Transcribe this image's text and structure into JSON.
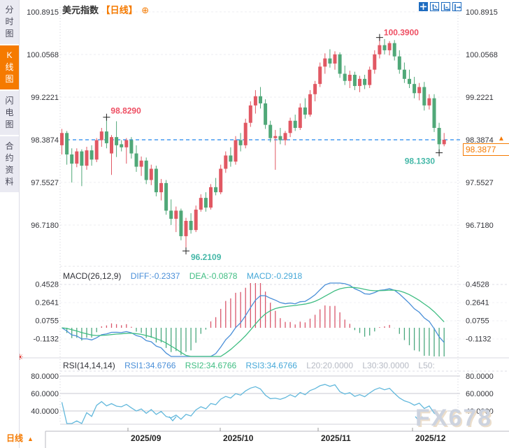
{
  "header": {
    "symbol": "美元指数",
    "period": "【日线】",
    "add_icon": "⊕"
  },
  "sidebar": {
    "items": [
      {
        "label": "分时图",
        "selected": false
      },
      {
        "label": "K线图",
        "selected": true
      },
      {
        "label": "闪电图",
        "selected": false
      },
      {
        "label": "合约资料",
        "selected": false
      }
    ]
  },
  "toolbar": {
    "icons": [
      "crosshair-icon",
      "axis-scale-icon",
      "axis-pan-icon",
      "shift-right-icon"
    ]
  },
  "main_chart": {
    "y_axis_labels": [
      "100.8915",
      "100.0568",
      "99.2221",
      "98.3874",
      "97.5527",
      "96.7180"
    ],
    "current_line_value": "98.3874",
    "current_price": "98.3877",
    "annotations": [
      {
        "text": "98.8290",
        "color": "#ee4f63"
      },
      {
        "text": "100.3900",
        "color": "#ee4f63"
      },
      {
        "text": "96.2109",
        "color": "#45b8a8"
      },
      {
        "text": "98.1330",
        "color": "#45b8a8"
      }
    ]
  },
  "macd_panel": {
    "name": "MACD(26,12,9)",
    "diff": "DIFF:-0.2337",
    "dea": "DEA:-0.0878",
    "macd": "MACD:-0.2918",
    "y_axis_labels": [
      "0.4528",
      "0.2641",
      "0.0755",
      "-0.1132"
    ]
  },
  "rsi_panel": {
    "name": "RSI(14,14,14)",
    "rsi1": "RSI1:34.6766",
    "rsi2": "RSI2:34.6766",
    "rsi3": "RSI3:34.6766",
    "l20": "L20:20.0000",
    "l30": "L30:30.0000",
    "l50": "L50:",
    "y_axis_labels": [
      "80.0000",
      "60.0000",
      "40.0000"
    ]
  },
  "x_axis": {
    "labels": [
      "2025/09",
      "2025/10",
      "2025/11",
      "2025/12"
    ],
    "period_selector": "日线"
  },
  "watermark": "FX678",
  "colors": {
    "up_candle": "#e15863",
    "down_candle": "#50a878",
    "accent": "#f57a00",
    "diff_line": "#4a8fd8",
    "dea_line": "#3fbd82",
    "rsi_line": "#62b8dc",
    "current_line": "#2288ee",
    "ann_red": "#ee4f63",
    "ann_teal": "#45b8a8",
    "hist_pos": "#d9566b",
    "hist_neg": "#4aa87e"
  },
  "chart_data": {
    "type": "candlestick",
    "title": "美元指数 日线",
    "price_ticks": [
      100.8915,
      100.0568,
      99.2221,
      98.3874,
      97.5527,
      96.718
    ],
    "x_ticks": [
      "2025/09",
      "2025/10",
      "2025/11",
      "2025/12"
    ],
    "marks": {
      "early_high": 98.829,
      "peak_high": 100.39,
      "min_low": 96.2109,
      "recent_low": 98.133,
      "last_price": 98.3877,
      "prev_close_line": 98.3874
    },
    "ohlc": [
      [
        98.28,
        98.6,
        98.1,
        98.52
      ],
      [
        98.52,
        98.56,
        97.9,
        98.1
      ],
      [
        98.1,
        98.22,
        97.55,
        97.92
      ],
      [
        97.92,
        98.22,
        97.85,
        98.16
      ],
      [
        98.16,
        98.2,
        97.48,
        97.88
      ],
      [
        97.88,
        98.25,
        97.8,
        98.18
      ],
      [
        98.18,
        98.28,
        97.88,
        98.0
      ],
      [
        98.0,
        98.42,
        97.95,
        98.38
      ],
      [
        98.38,
        98.62,
        98.25,
        98.55
      ],
      [
        98.55,
        98.829,
        98.22,
        98.32
      ],
      [
        98.12,
        98.48,
        97.7,
        98.44
      ],
      [
        98.44,
        98.75,
        98.05,
        98.28
      ],
      [
        98.3,
        98.38,
        98.16,
        98.24
      ],
      [
        98.24,
        98.42,
        97.92,
        98.38
      ],
      [
        98.38,
        98.44,
        98.02,
        98.12
      ],
      [
        98.12,
        98.28,
        97.76,
        97.86
      ],
      [
        97.86,
        98.06,
        97.68,
        97.98
      ],
      [
        97.98,
        98.04,
        97.52,
        97.6
      ],
      [
        97.6,
        97.9,
        97.5,
        97.82
      ],
      [
        97.82,
        97.88,
        97.28,
        97.36
      ],
      [
        97.36,
        97.62,
        97.2,
        97.54
      ],
      [
        97.54,
        97.6,
        96.92,
        97.0
      ],
      [
        97.0,
        97.22,
        96.72,
        96.84
      ],
      [
        96.84,
        97.08,
        96.58,
        97.0
      ],
      [
        97.0,
        97.04,
        96.42,
        96.5
      ],
      [
        96.5,
        96.86,
        96.2109,
        96.8
      ],
      [
        96.8,
        96.95,
        96.55,
        96.62
      ],
      [
        96.62,
        97.1,
        96.58,
        97.02
      ],
      [
        97.02,
        97.32,
        96.98,
        97.25
      ],
      [
        97.25,
        97.36,
        96.98,
        97.06
      ],
      [
        97.06,
        97.52,
        97.02,
        97.46
      ],
      [
        97.46,
        97.64,
        97.3,
        97.36
      ],
      [
        97.36,
        97.9,
        97.32,
        97.82
      ],
      [
        97.82,
        98.16,
        97.74,
        98.08
      ],
      [
        98.08,
        98.24,
        97.86,
        97.96
      ],
      [
        97.96,
        98.46,
        97.9,
        98.38
      ],
      [
        98.38,
        98.52,
        98.16,
        98.28
      ],
      [
        98.28,
        98.8,
        98.22,
        98.72
      ],
      [
        98.72,
        99.14,
        98.64,
        99.06
      ],
      [
        99.06,
        99.36,
        98.9,
        99.24
      ],
      [
        99.24,
        99.42,
        99.0,
        99.1
      ],
      [
        99.1,
        99.18,
        98.6,
        98.68
      ],
      [
        98.68,
        98.76,
        98.34,
        98.42
      ],
      [
        98.42,
        98.58,
        97.8,
        98.46
      ],
      [
        98.46,
        98.62,
        98.3,
        98.38
      ],
      [
        98.38,
        98.56,
        98.28,
        98.52
      ],
      [
        98.52,
        98.82,
        98.44,
        98.76
      ],
      [
        98.76,
        98.88,
        98.56,
        98.62
      ],
      [
        98.62,
        99.1,
        98.58,
        99.02
      ],
      [
        99.02,
        99.2,
        98.8,
        98.88
      ],
      [
        98.88,
        99.36,
        98.84,
        99.28
      ],
      [
        99.28,
        99.54,
        99.14,
        99.48
      ],
      [
        99.48,
        99.9,
        99.42,
        99.82
      ],
      [
        99.82,
        100.08,
        99.68,
        99.98
      ],
      [
        99.98,
        100.16,
        99.8,
        99.88
      ],
      [
        99.88,
        100.12,
        99.76,
        100.06
      ],
      [
        100.06,
        100.1,
        99.6,
        99.68
      ],
      [
        99.68,
        99.84,
        99.46,
        99.54
      ],
      [
        99.54,
        99.74,
        99.4,
        99.66
      ],
      [
        99.66,
        99.72,
        99.36,
        99.44
      ],
      [
        99.44,
        99.64,
        99.32,
        99.58
      ],
      [
        99.58,
        99.66,
        99.38,
        99.46
      ],
      [
        99.46,
        99.82,
        99.4,
        99.76
      ],
      [
        99.76,
        100.14,
        99.68,
        100.06
      ],
      [
        100.06,
        100.39,
        99.98,
        100.24
      ],
      [
        100.24,
        100.36,
        100.06,
        100.14
      ],
      [
        100.14,
        100.32,
        100.04,
        100.28
      ],
      [
        100.28,
        100.34,
        99.94,
        100.02
      ],
      [
        100.02,
        100.14,
        99.68,
        99.76
      ],
      [
        99.76,
        99.9,
        99.5,
        99.58
      ],
      [
        99.58,
        99.76,
        99.4,
        99.48
      ],
      [
        99.48,
        99.62,
        99.2,
        99.3
      ],
      [
        99.3,
        99.5,
        99.16,
        99.42
      ],
      [
        99.42,
        99.52,
        98.96,
        99.06
      ],
      [
        99.06,
        99.28,
        98.98,
        99.2
      ],
      [
        99.2,
        99.28,
        98.54,
        98.62
      ],
      [
        98.62,
        98.72,
        98.133,
        98.3
      ],
      [
        98.3,
        98.52,
        98.26,
        98.3877
      ]
    ],
    "indicators": {
      "macd": {
        "params": [
          26,
          12,
          9
        ],
        "diff": -0.2337,
        "dea": -0.0878,
        "macd": -0.2918,
        "ticks": [
          0.4528,
          0.2641,
          0.0755,
          -0.1132
        ]
      },
      "rsi": {
        "params": [
          14,
          14,
          14
        ],
        "rsi1": 34.6766,
        "rsi2": 34.6766,
        "rsi3": 34.6766,
        "levels": [
          20.0,
          30.0,
          50.0
        ],
        "ticks": [
          80.0,
          60.0,
          40.0
        ]
      }
    }
  }
}
